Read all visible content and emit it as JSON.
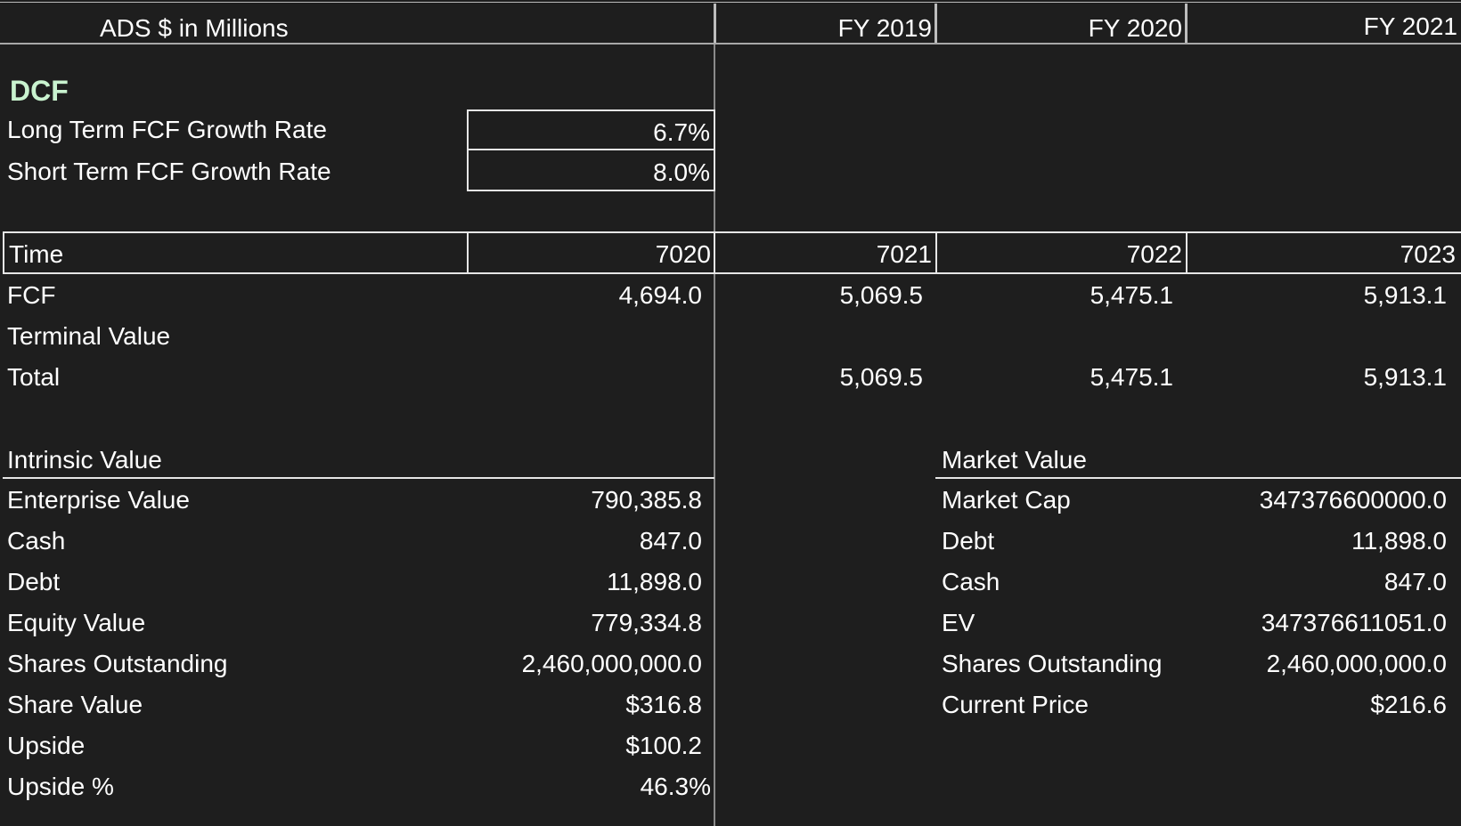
{
  "header": {
    "title": "ADS $ in Millions",
    "years": [
      "FY 2019",
      "FY 2020",
      "FY 2021"
    ]
  },
  "dcf": {
    "title": "DCF",
    "long_term_label": "Long Term FCF Growth Rate",
    "long_term_value": "6.7%",
    "short_term_label": "Short Term FCF Growth Rate",
    "short_term_value": "8.0%"
  },
  "time_row": {
    "label": "Time",
    "values": [
      "7020",
      "7021",
      "7022",
      "7023"
    ]
  },
  "fcf_row": {
    "label": "FCF",
    "values": [
      "4,694.0",
      "5,069.5",
      "5,475.1",
      "5,913.1"
    ]
  },
  "terminal_row": {
    "label": "Terminal Value"
  },
  "total_row": {
    "label": "Total",
    "values": [
      "5,069.5",
      "5,475.1",
      "5,913.1"
    ]
  },
  "intrinsic": {
    "title": "Intrinsic Value",
    "rows": [
      {
        "label": "Enterprise Value",
        "value": "790,385.8"
      },
      {
        "label": "Cash",
        "value": "847.0"
      },
      {
        "label": "Debt",
        "value": "11,898.0"
      },
      {
        "label": "Equity Value",
        "value": "779,334.8"
      },
      {
        "label": "Shares Outstanding",
        "value": "2,460,000,000.0"
      },
      {
        "label": "Share Value",
        "value": "$316.8"
      },
      {
        "label": "Upside",
        "value": "$100.2"
      },
      {
        "label": "Upside %",
        "value": "46.3%"
      }
    ]
  },
  "market": {
    "title": "Market Value",
    "rows": [
      {
        "label": "Market Cap",
        "value": "347376600000.0"
      },
      {
        "label": "Debt",
        "value": "11,898.0"
      },
      {
        "label": "Cash",
        "value": "847.0"
      },
      {
        "label": "EV",
        "value": "347376611051.0"
      },
      {
        "label": "Shares Outstanding",
        "value": "2,460,000,000.0"
      },
      {
        "label": "Current Price",
        "value": "$216.6"
      }
    ]
  },
  "colors": {
    "background": "#1e1e1e",
    "text": "#ffffff",
    "dcf_title": "#c9f3cf",
    "grid_line": "#8a8a8a",
    "border": "#e6e6e6"
  }
}
